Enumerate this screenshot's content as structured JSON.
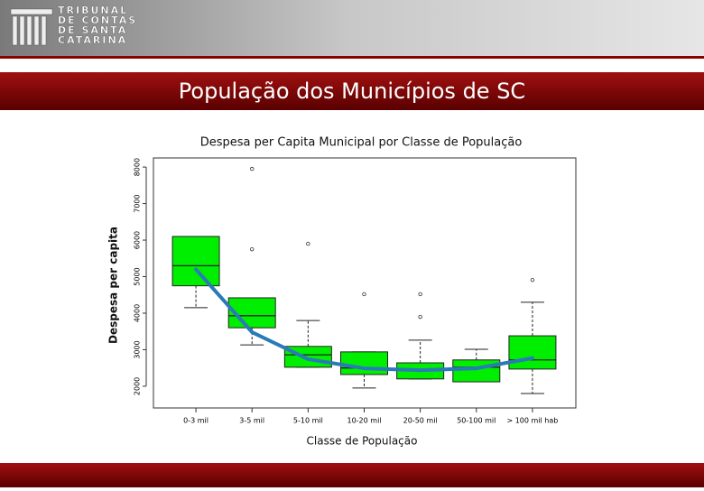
{
  "header": {
    "logo_lines": [
      "TRIBUNAL",
      "DE CONTAS",
      "DE SANTA",
      "CATARINA"
    ],
    "title": "População dos Municípios de SC"
  },
  "chart_data": {
    "type": "box",
    "title": "Despesa per Capita Municipal por Classe de População",
    "x_label": "Classe de População",
    "y_label": "Despesa per capita",
    "categories": [
      "0-3 mil",
      "3-5 mil",
      "5-10 mil",
      "10-20 mil",
      "20-50 mil",
      "50-100 mil",
      "> 100 mil hab"
    ],
    "whisker_low": [
      4150,
      3130,
      2520,
      1950,
      2200,
      2120,
      1800
    ],
    "q1": [
      4750,
      3600,
      2520,
      2320,
      2200,
      2120,
      2470
    ],
    "median": [
      5300,
      3930,
      2860,
      2500,
      2440,
      2520,
      2720
    ],
    "q3": [
      6100,
      4420,
      3090,
      2940,
      2640,
      2720,
      3380
    ],
    "whisker_high": [
      6100,
      4420,
      3800,
      2940,
      3260,
      3010,
      4300
    ],
    "outliers": [
      [],
      [
        7950,
        5750
      ],
      [
        5900
      ],
      [
        4520
      ],
      [
        4520,
        3900
      ],
      [],
      [
        4910
      ]
    ],
    "box_color": "#00ee00",
    "trend": {
      "color": "#2a7ab8",
      "values": [
        5200,
        3480,
        2740,
        2490,
        2440,
        2490,
        2770
      ]
    },
    "ylim": [
      1800,
      8200
    ],
    "yticks": [
      2000,
      3000,
      4000,
      5000,
      6000,
      7000,
      8000
    ]
  }
}
